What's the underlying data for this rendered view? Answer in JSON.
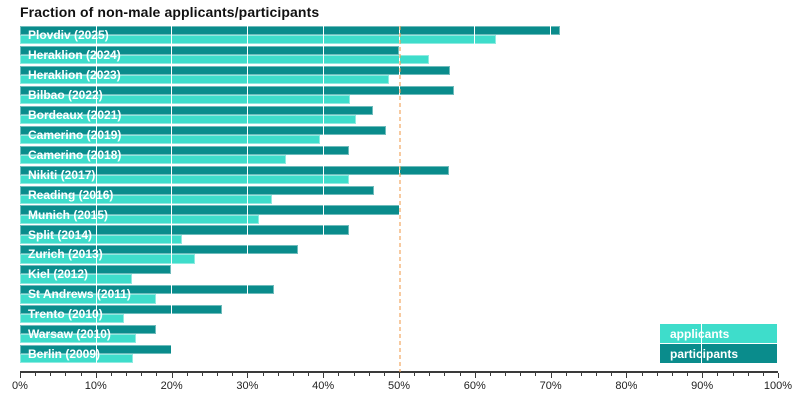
{
  "chart_data": {
    "type": "bar",
    "orientation": "horizontal",
    "title": "Fraction of non-male applicants/participants",
    "categories": [
      "Plovdiv (2025)",
      "Heraklion (2024)",
      "Heraklion (2023)",
      "Bilbao (2022)",
      "Bordeaux (2021)",
      "Camerino (2019)",
      "Camerino (2018)",
      "Nikiti (2017)",
      "Reading (2016)",
      "Munich (2015)",
      "Split (2014)",
      "Zurich (2013)",
      "Kiel (2012)",
      "St Andrews (2011)",
      "Trento (2010)",
      "Warsaw (2010)",
      "Berlin (2009)"
    ],
    "series": [
      {
        "name": "applicants",
        "color": "#3eddcb",
        "values": [
          62.9,
          54.0,
          48.8,
          43.6,
          44.4,
          39.6,
          35.2,
          43.4,
          33.3,
          31.6,
          21.4,
          23.1,
          14.8,
          18.0,
          13.8,
          15.3,
          14.9
        ]
      },
      {
        "name": "participants",
        "color": "#0a8c8c",
        "values": [
          71.4,
          50.0,
          56.8,
          57.3,
          46.6,
          48.4,
          43.4,
          56.7,
          46.7,
          50.2,
          43.4,
          36.7,
          20.0,
          33.5,
          26.7,
          17.9,
          20.1
        ]
      }
    ],
    "row_order": [
      "participants",
      "applicants"
    ],
    "xlim": [
      0,
      100
    ],
    "xticks": [
      {
        "value": 0,
        "label": "0%"
      },
      {
        "value": 10,
        "label": "10%"
      },
      {
        "value": 20,
        "label": "20%"
      },
      {
        "value": 30,
        "label": "30%"
      },
      {
        "value": 40,
        "label": "40%"
      },
      {
        "value": 50,
        "label": "50%"
      },
      {
        "value": 60,
        "label": "60%"
      },
      {
        "value": 70,
        "label": "70%"
      },
      {
        "value": 80,
        "label": "80%"
      },
      {
        "value": 90,
        "label": "90%"
      },
      {
        "value": 100,
        "label": "100%"
      }
    ],
    "minor_tick_step": 2,
    "gridline_positions": [
      10,
      20,
      30,
      40,
      50,
      60,
      70,
      80,
      90
    ],
    "gridline_color": "#ffffff",
    "reference_line": {
      "x": 50,
      "color": "rgba(240,158,82,0.55)",
      "style": "dashed"
    },
    "legend": {
      "position": "bottom-right",
      "entries": [
        {
          "label": "applicants",
          "color": "#3eddcb"
        },
        {
          "label": "participants",
          "color": "#0a8c8c"
        }
      ]
    }
  }
}
